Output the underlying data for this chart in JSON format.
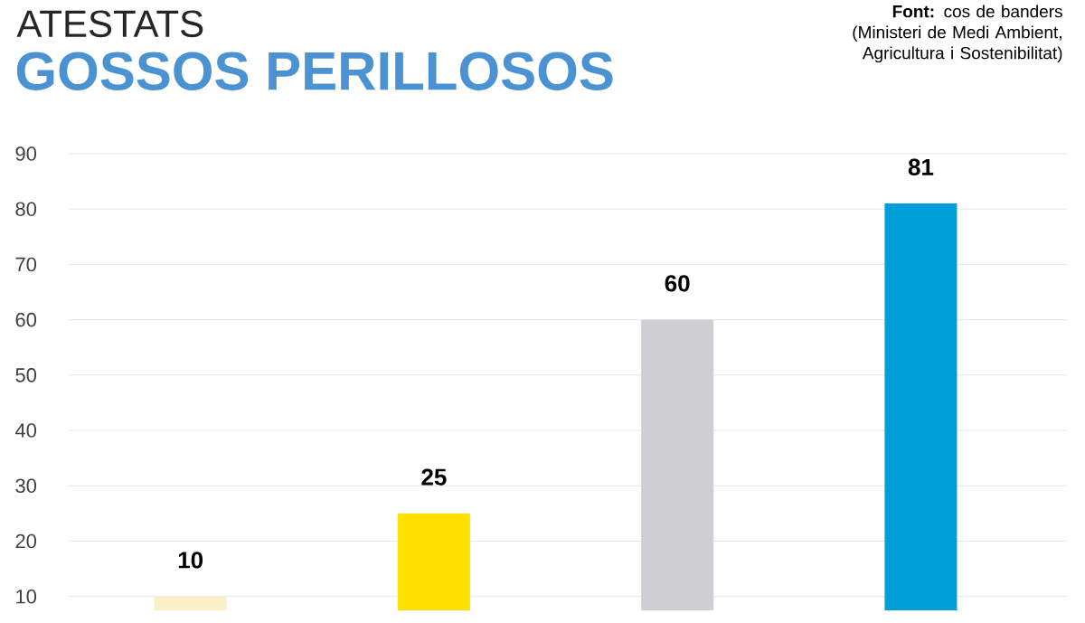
{
  "chart_data": {
    "type": "bar",
    "title": "ATESTATS",
    "subtitle": "GOSSOS PERILLOSOS",
    "annotations": [
      "**Font:** cos de banders (Ministeri de Medi Ambient, Agricultura i Sostenibilitat)"
    ],
    "categories": [
      null,
      null,
      null,
      null
    ],
    "values": [
      10,
      25,
      60,
      81
    ],
    "colors": [
      "#fbefc8",
      "#ffe000",
      "#cfcfd3",
      "#009fda"
    ],
    "ylim": [
      7.5,
      90
    ],
    "yticks": [
      10,
      20,
      30,
      40,
      50,
      60,
      70,
      80,
      90
    ],
    "grid": "y",
    "data_labels": true
  }
}
